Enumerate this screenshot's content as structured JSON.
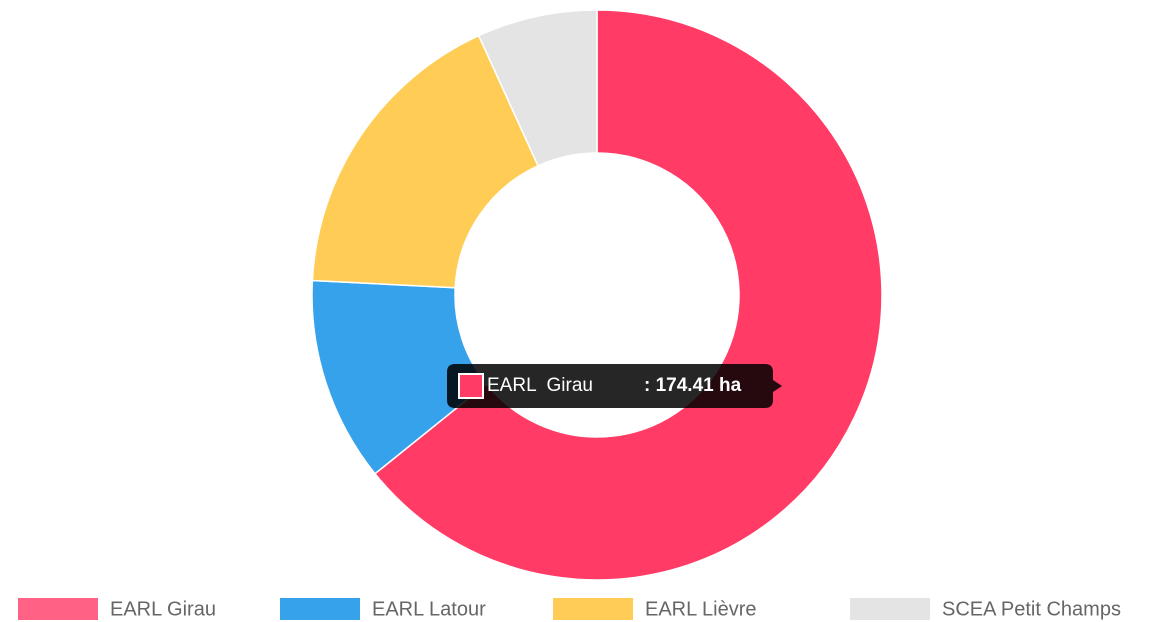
{
  "chart_data": {
    "type": "doughnut",
    "categories": [
      "EARL Girau",
      "EARL Latour",
      "EARL  Lièvre",
      "SCEA Petit Champs"
    ],
    "values": [
      174.41,
      31.5,
      47.2,
      18.5
    ],
    "colors": [
      "#ff3b66",
      "#36a2eb",
      "#ffcd56",
      "#e4e4e4"
    ],
    "legend": "bottom",
    "tooltip": {
      "title": "EARL  Girau",
      "text": ": 174.41 ha"
    }
  }
}
